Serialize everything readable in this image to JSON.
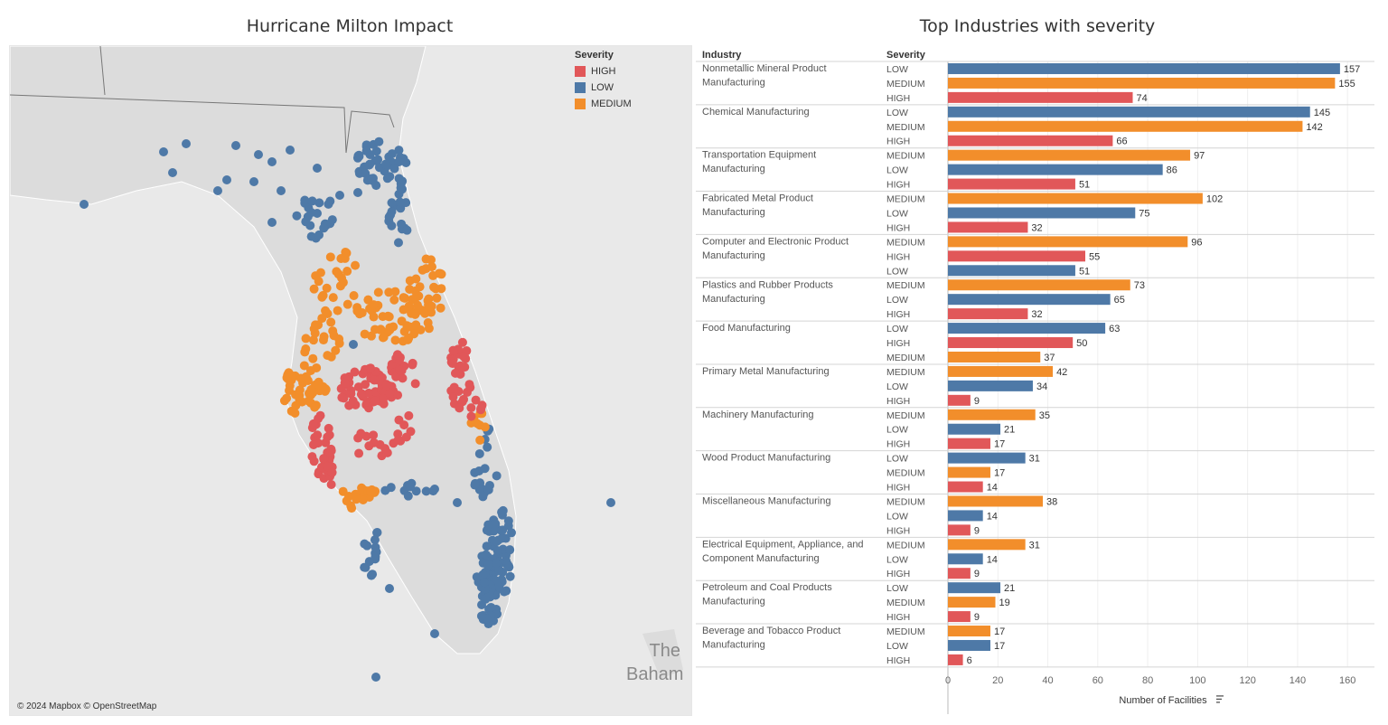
{
  "map": {
    "title": "Hurricane Milton Impact",
    "legend_title": "Severity",
    "legend": [
      {
        "label": "HIGH",
        "color": "#e15759"
      },
      {
        "label": "LOW",
        "color": "#4e79a7"
      },
      {
        "label": "MEDIUM",
        "color": "#f28e2b"
      }
    ],
    "attribution": "© 2024 Mapbox © OpenStreetMap",
    "place_label": [
      "The",
      "Baham"
    ]
  },
  "chart_data": {
    "type": "bar",
    "orientation": "horizontal",
    "title": "Top Industries with severity",
    "column_headers": [
      "Industry",
      "Severity"
    ],
    "xlabel": "Number of Facilities",
    "xlim": [
      0,
      165
    ],
    "xticks": [
      0,
      20,
      40,
      60,
      80,
      100,
      120,
      140,
      160
    ],
    "colors": {
      "HIGH": "#e15759",
      "LOW": "#4e79a7",
      "MEDIUM": "#f28e2b"
    },
    "groups": [
      {
        "industry": [
          "Nonmetallic Mineral Product",
          "Manufacturing"
        ],
        "bars": [
          {
            "severity": "LOW",
            "value": 157
          },
          {
            "severity": "MEDIUM",
            "value": 155
          },
          {
            "severity": "HIGH",
            "value": 74
          }
        ]
      },
      {
        "industry": [
          "Chemical Manufacturing"
        ],
        "bars": [
          {
            "severity": "LOW",
            "value": 145
          },
          {
            "severity": "MEDIUM",
            "value": 142
          },
          {
            "severity": "HIGH",
            "value": 66
          }
        ]
      },
      {
        "industry": [
          "Transportation Equipment",
          "Manufacturing"
        ],
        "bars": [
          {
            "severity": "MEDIUM",
            "value": 97
          },
          {
            "severity": "LOW",
            "value": 86
          },
          {
            "severity": "HIGH",
            "value": 51
          }
        ]
      },
      {
        "industry": [
          "Fabricated Metal Product",
          "Manufacturing"
        ],
        "bars": [
          {
            "severity": "MEDIUM",
            "value": 102
          },
          {
            "severity": "LOW",
            "value": 75
          },
          {
            "severity": "HIGH",
            "value": 32
          }
        ]
      },
      {
        "industry": [
          "Computer and Electronic Product",
          "Manufacturing"
        ],
        "bars": [
          {
            "severity": "MEDIUM",
            "value": 96
          },
          {
            "severity": "HIGH",
            "value": 55
          },
          {
            "severity": "LOW",
            "value": 51
          }
        ]
      },
      {
        "industry": [
          "Plastics and Rubber Products",
          "Manufacturing"
        ],
        "bars": [
          {
            "severity": "MEDIUM",
            "value": 73
          },
          {
            "severity": "LOW",
            "value": 65
          },
          {
            "severity": "HIGH",
            "value": 32
          }
        ]
      },
      {
        "industry": [
          "Food Manufacturing"
        ],
        "bars": [
          {
            "severity": "LOW",
            "value": 63
          },
          {
            "severity": "HIGH",
            "value": 50
          },
          {
            "severity": "MEDIUM",
            "value": 37
          }
        ]
      },
      {
        "industry": [
          "Primary Metal Manufacturing"
        ],
        "bars": [
          {
            "severity": "MEDIUM",
            "value": 42
          },
          {
            "severity": "LOW",
            "value": 34
          },
          {
            "severity": "HIGH",
            "value": 9
          }
        ]
      },
      {
        "industry": [
          "Machinery Manufacturing"
        ],
        "bars": [
          {
            "severity": "MEDIUM",
            "value": 35
          },
          {
            "severity": "LOW",
            "value": 21
          },
          {
            "severity": "HIGH",
            "value": 17
          }
        ]
      },
      {
        "industry": [
          "Wood Product Manufacturing"
        ],
        "bars": [
          {
            "severity": "LOW",
            "value": 31
          },
          {
            "severity": "MEDIUM",
            "value": 17
          },
          {
            "severity": "HIGH",
            "value": 14
          }
        ]
      },
      {
        "industry": [
          "Miscellaneous Manufacturing"
        ],
        "bars": [
          {
            "severity": "MEDIUM",
            "value": 38
          },
          {
            "severity": "LOW",
            "value": 14
          },
          {
            "severity": "HIGH",
            "value": 9
          }
        ]
      },
      {
        "industry": [
          "Electrical Equipment, Appliance, and",
          "Component Manufacturing"
        ],
        "bars": [
          {
            "severity": "MEDIUM",
            "value": 31
          },
          {
            "severity": "LOW",
            "value": 14
          },
          {
            "severity": "HIGH",
            "value": 9
          }
        ]
      },
      {
        "industry": [
          "Petroleum and Coal Products",
          "Manufacturing"
        ],
        "bars": [
          {
            "severity": "LOW",
            "value": 21
          },
          {
            "severity": "MEDIUM",
            "value": 19
          },
          {
            "severity": "HIGH",
            "value": 9
          }
        ]
      },
      {
        "industry": [
          "Beverage and Tobacco Product",
          "Manufacturing"
        ],
        "bars": [
          {
            "severity": "MEDIUM",
            "value": 17
          },
          {
            "severity": "LOW",
            "value": 17
          },
          {
            "severity": "HIGH",
            "value": 6
          }
        ]
      }
    ]
  }
}
